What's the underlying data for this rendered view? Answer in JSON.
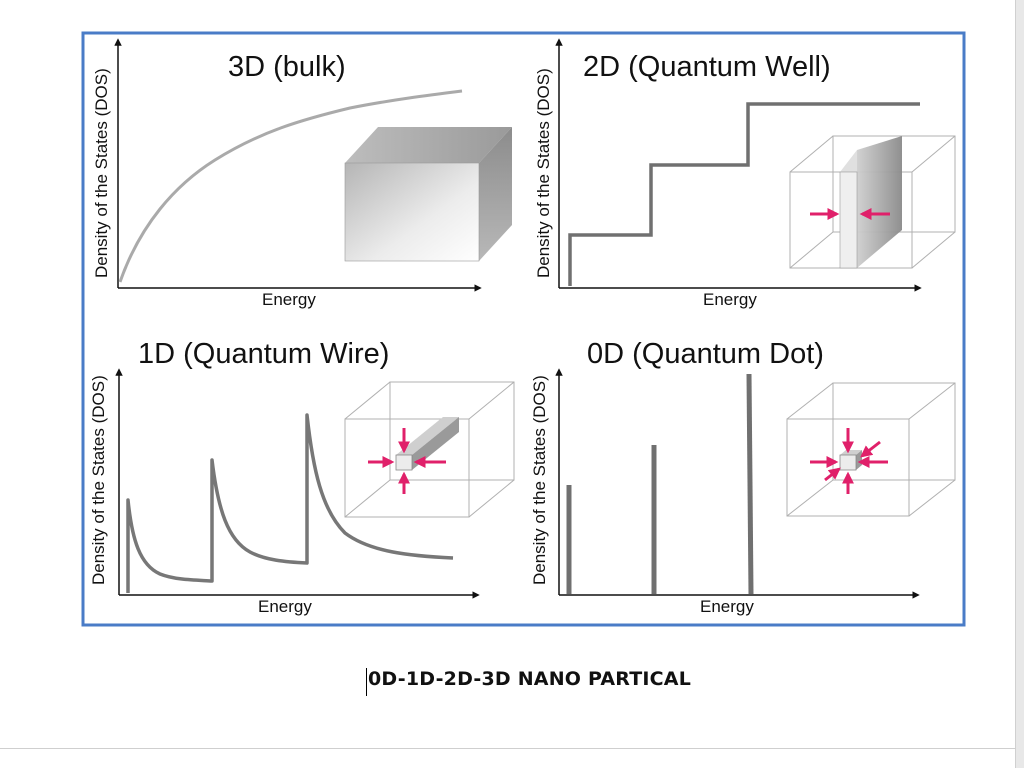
{
  "figure": {
    "panels": [
      {
        "id": "3d",
        "title": "3D (bulk)",
        "xlabel": "Energy",
        "ylabel": "Density of the States (DOS)"
      },
      {
        "id": "2d",
        "title": "2D (Quantum Well)",
        "xlabel": "Energy",
        "ylabel": "Density of the States (DOS)"
      },
      {
        "id": "1d",
        "title": "1D (Quantum Wire)",
        "xlabel": "Energy",
        "ylabel": "Density of the States (DOS)"
      },
      {
        "id": "0d",
        "title": "0D (Quantum Dot)",
        "xlabel": "Energy",
        "ylabel": "Density of the States (DOS)"
      }
    ]
  },
  "caption": "0D-1D-2D-3D NANO PARTICAL",
  "colors": {
    "frame": "#4a7cc7",
    "curve": "#888888",
    "arrow": "#e0206a"
  }
}
